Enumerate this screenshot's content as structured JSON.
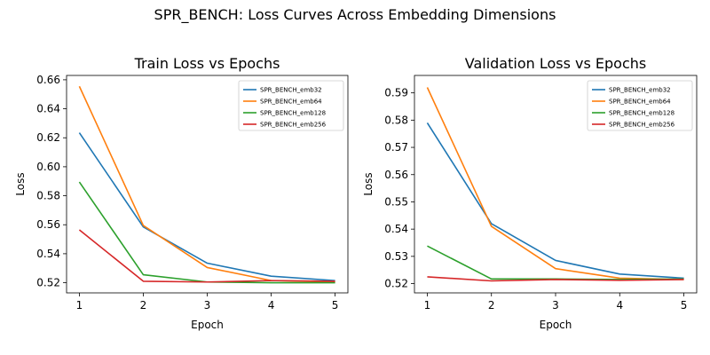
{
  "figure": {
    "suptitle": "SPR_BENCH: Loss Curves Across Embedding Dimensions"
  },
  "chart_data": [
    {
      "type": "line",
      "title": "Train Loss vs Epochs",
      "xlabel": "Epoch",
      "ylabel": "Loss",
      "x": [
        1,
        2,
        3,
        4,
        5
      ],
      "xlim": [
        0.8,
        5.2
      ],
      "ylim": [
        0.513,
        0.663
      ],
      "xticks": [
        1,
        2,
        3,
        4,
        5
      ],
      "yticks": [
        "0.52",
        "0.54",
        "0.56",
        "0.58",
        "0.60",
        "0.62",
        "0.64",
        "0.66"
      ],
      "grid": false,
      "legend": "top-right",
      "series": [
        {
          "name": "SPR_BENCH_emb32",
          "color": "#1f77b4",
          "values": [
            0.6235,
            0.5585,
            0.5335,
            0.5245,
            0.5215
          ]
        },
        {
          "name": "SPR_BENCH_emb64",
          "color": "#ff7f0e",
          "values": [
            0.6555,
            0.5595,
            0.5305,
            0.5215,
            0.5205
          ]
        },
        {
          "name": "SPR_BENCH_emb128",
          "color": "#2ca02c",
          "values": [
            0.5895,
            0.5255,
            0.5205,
            0.52,
            0.52
          ]
        },
        {
          "name": "SPR_BENCH_emb256",
          "color": "#d62728",
          "values": [
            0.5565,
            0.521,
            0.5205,
            0.5215,
            0.521
          ]
        }
      ]
    },
    {
      "type": "line",
      "title": "Validation Loss vs Epochs",
      "xlabel": "Epoch",
      "ylabel": "Loss",
      "x": [
        1,
        2,
        3,
        4,
        5
      ],
      "xlim": [
        0.8,
        5.2
      ],
      "ylim": [
        0.5166,
        0.5964
      ],
      "xticks": [
        1,
        2,
        3,
        4,
        5
      ],
      "yticks": [
        "0.52",
        "0.53",
        "0.54",
        "0.55",
        "0.56",
        "0.57",
        "0.58",
        "0.59"
      ],
      "grid": false,
      "legend": "top-right",
      "series": [
        {
          "name": "SPR_BENCH_emb32",
          "color": "#1f77b4",
          "values": [
            0.579,
            0.542,
            0.5285,
            0.5235,
            0.522
          ]
        },
        {
          "name": "SPR_BENCH_emb64",
          "color": "#ff7f0e",
          "values": [
            0.592,
            0.541,
            0.5255,
            0.522,
            0.5215
          ]
        },
        {
          "name": "SPR_BENCH_emb128",
          "color": "#2ca02c",
          "values": [
            0.5338,
            0.5217,
            0.5217,
            0.5215,
            0.5217
          ]
        },
        {
          "name": "SPR_BENCH_emb256",
          "color": "#d62728",
          "values": [
            0.5225,
            0.521,
            0.5215,
            0.5212,
            0.5215
          ]
        }
      ]
    }
  ]
}
